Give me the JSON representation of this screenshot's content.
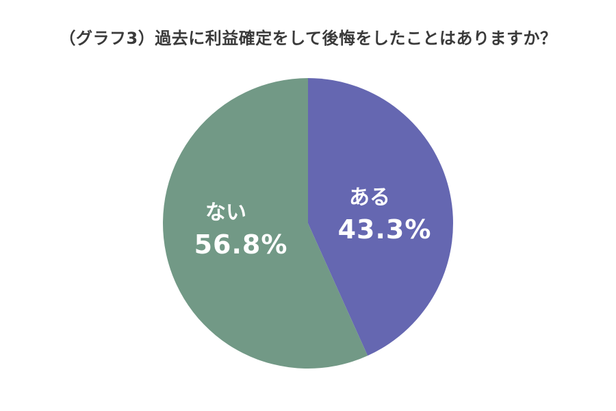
{
  "chart_data": {
    "type": "pie",
    "title": "（グラフ3）過去に利益確定をして後悔をしたことはありますか？",
    "start_angle_deg": 0,
    "direction": "clockwise",
    "slices": [
      {
        "label": "ある",
        "value": 43.3,
        "value_label": "43.3%",
        "color": "#6567b1"
      },
      {
        "label": "ない",
        "value": 56.8,
        "value_label": "56.8%",
        "color": "#729986"
      }
    ],
    "legend": "none",
    "labels": "inside"
  }
}
